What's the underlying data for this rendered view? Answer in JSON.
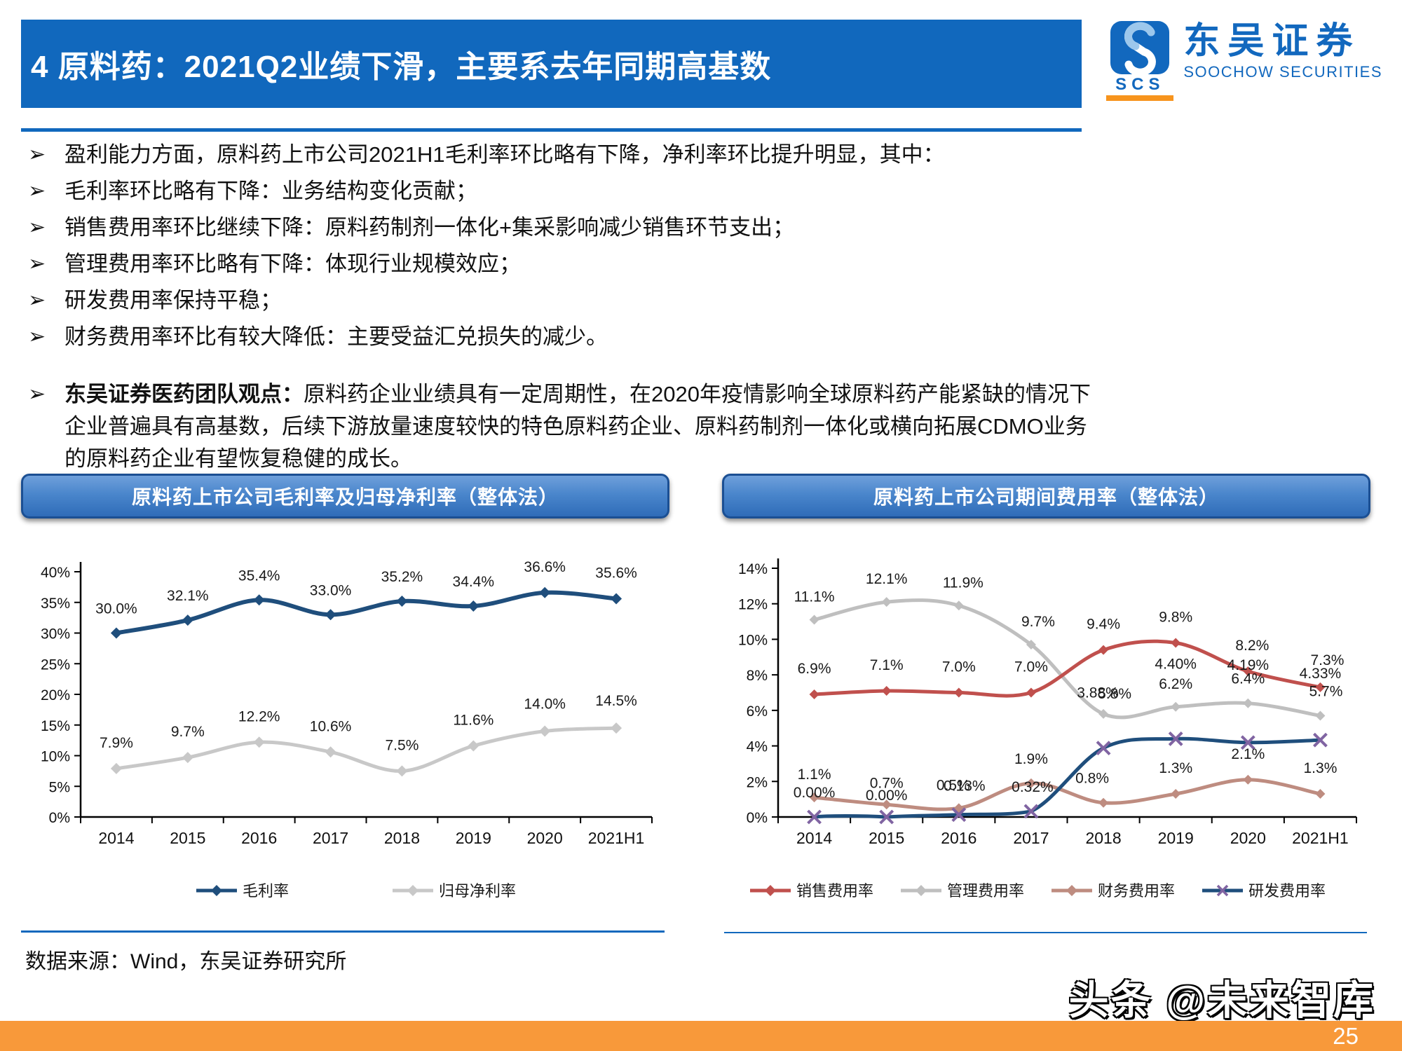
{
  "header": {
    "title": "4 原料药：2021Q2业绩下滑，主要系去年同期高基数",
    "logo": {
      "mark_letter": "S",
      "scs": "SCS",
      "name_zh": "东吴证券",
      "name_en": "SOOCHOW SECURITIES"
    }
  },
  "bullets": [
    "盈利能力方面，原料药上市公司2021H1毛利率环比略有下降，净利率环比提升明显，其中：",
    "毛利率环比略有下降：业务结构变化贡献；",
    "销售费用率环比继续下降：原料药制剂一体化+集采影响减少销售环节支出；",
    "管理费用率环比略有下降：体现行业规模效应；",
    "研发费用率保持平稳；",
    "财务费用率环比有较大降低：主要受益汇兑损失的减少。"
  ],
  "opinion": {
    "lead": "东吴证券医药团队观点：",
    "body": "原料药企业业绩具有一定周期性，在2020年疫情影响全球原料药产能紧缺的情况下企业普遍具有高基数，后续下游放量速度较快的特色原料药企业、原料药制剂一体化或横向拓展CDMO业务的原料药企业有望恢复稳健的成长。"
  },
  "chart_data": [
    {
      "type": "line",
      "title": "原料药上市公司毛利率及归母净利率（整体法）",
      "categories": [
        "2014",
        "2015",
        "2016",
        "2017",
        "2018",
        "2019",
        "2020",
        "2021H1"
      ],
      "ylim": [
        0,
        40
      ],
      "ytick_step": 5,
      "ytick_suffix": "%",
      "grid": false,
      "legend_position": "bottom",
      "series": [
        {
          "name": "毛利率",
          "color": "#1F4E7C",
          "marker": "diamond",
          "values": [
            30.0,
            32.1,
            35.4,
            33.0,
            35.2,
            34.4,
            36.6,
            35.6
          ],
          "labels": [
            "30.0%",
            "32.1%",
            "35.4%",
            "33.0%",
            "35.2%",
            "34.4%",
            "36.6%",
            "35.6%"
          ]
        },
        {
          "name": "归母净利率",
          "color": "#C8C8C8",
          "marker": "diamond",
          "values": [
            7.9,
            9.7,
            12.2,
            10.6,
            7.5,
            11.6,
            14.0,
            14.5
          ],
          "labels": [
            "7.9%",
            "9.7%",
            "12.2%",
            "10.6%",
            "7.5%",
            "11.6%",
            "14.0%",
            "14.5%"
          ]
        }
      ]
    },
    {
      "type": "line",
      "title": "原料药上市公司期间费用率（整体法）",
      "categories": [
        "2014",
        "2015",
        "2016",
        "2017",
        "2018",
        "2019",
        "2020",
        "2021H1"
      ],
      "ylim": [
        0,
        14
      ],
      "ytick_step": 2,
      "ytick_suffix": "%",
      "grid": false,
      "legend_position": "bottom",
      "series": [
        {
          "name": "销售费用率",
          "color": "#C0504D",
          "marker": "diamond",
          "values": [
            6.9,
            7.1,
            7.0,
            7.0,
            9.4,
            9.8,
            8.2,
            7.3
          ],
          "labels": [
            "6.9%",
            "7.1%",
            "7.0%",
            "7.0%",
            "9.4%",
            "9.8%",
            "8.2%",
            "7.3%"
          ]
        },
        {
          "name": "管理费用率",
          "color": "#BFBFBF",
          "marker": "diamond",
          "values": [
            11.1,
            12.1,
            11.9,
            9.7,
            5.8,
            6.2,
            6.4,
            5.7
          ],
          "labels": [
            "11.1%",
            "12.1%",
            "11.9%",
            "9.7%",
            "5.8%",
            "6.2%",
            "6.4%",
            "5.7%"
          ]
        },
        {
          "name": "财务费用率",
          "color": "#BE8C80",
          "marker": "diamond",
          "values": [
            1.1,
            0.7,
            0.5,
            1.9,
            0.8,
            1.3,
            2.1,
            1.3
          ],
          "labels": [
            "1.1%",
            "0.7%",
            "0.5%",
            "1.9%",
            "0.8%",
            "1.3%",
            "2.1%",
            "1.3%"
          ]
        },
        {
          "name": "研发费用率",
          "color": "#1F4E7C",
          "marker": "x",
          "marker_color": "#8064A2",
          "values": [
            0.0,
            0.0,
            0.13,
            0.32,
            3.88,
            4.4,
            4.19,
            4.33
          ],
          "labels": [
            "0.00%",
            "0.00%",
            "0.13%",
            "0.32%",
            "3.88%",
            "4.40%",
            "4.19%",
            "4.33%"
          ]
        }
      ]
    }
  ],
  "footer": {
    "source": "数据来源：Wind，东吴证券研究所",
    "watermark": "头条 @未来智库",
    "page_number": "25"
  },
  "colors": {
    "primary_blue": "#1168BD",
    "banner_border": "#1B4F93",
    "orange_bar": "#F8993A",
    "logo_orange": "#F7941D"
  }
}
